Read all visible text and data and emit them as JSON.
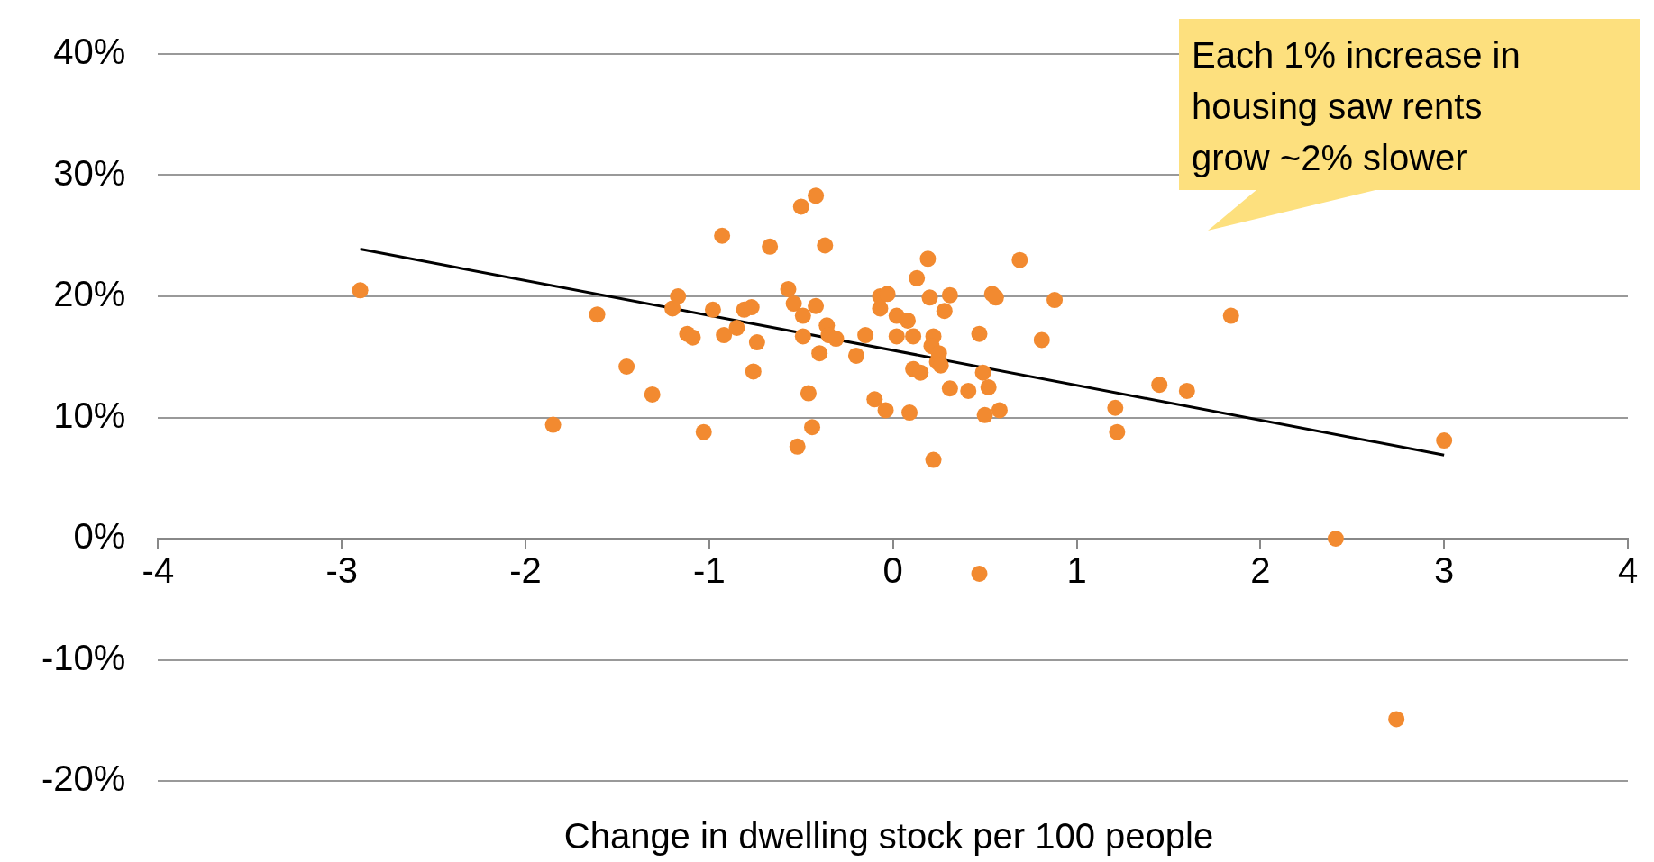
{
  "chart_data": {
    "type": "scatter",
    "xlabel": "Change in dwelling stock per 100 people",
    "xlim": [
      -4,
      4
    ],
    "xticks": [
      -4,
      -3,
      -2,
      -1,
      0,
      1,
      2,
      3,
      4
    ],
    "ylim": [
      -20,
      40
    ],
    "yticks": [
      {
        "value": -20,
        "label": "-20%"
      },
      {
        "value": -10,
        "label": "-10%"
      },
      {
        "value": 0,
        "label": "0%"
      },
      {
        "value": 10,
        "label": "10%"
      },
      {
        "value": 20,
        "label": "20%"
      },
      {
        "value": 30,
        "label": "30%"
      },
      {
        "value": 40,
        "label": "40%"
      }
    ],
    "grid": "y",
    "legend": false,
    "marker": "circle",
    "annotations": [
      "Each 1% increase in housing saw rents grow ~2% slower"
    ],
    "series": [
      {
        "color": "#f28a30",
        "x": [
          -2.9,
          -1.85,
          -1.61,
          -1.45,
          -1.31,
          -1.2,
          -1.17,
          -1.12,
          -1.09,
          -1.03,
          -0.98,
          -0.93,
          -0.92,
          -0.85,
          -0.81,
          -0.77,
          -0.76,
          -0.74,
          -0.67,
          -0.57,
          -0.54,
          -0.52,
          -0.5,
          -0.49,
          -0.49,
          -0.46,
          -0.44,
          -0.42,
          -0.42,
          -0.4,
          -0.37,
          -0.36,
          -0.35,
          -0.31,
          -0.2,
          -0.15,
          -0.1,
          -0.07,
          -0.07,
          -0.04,
          -0.03,
          0.02,
          0.02,
          0.08,
          0.09,
          0.11,
          0.11,
          0.13,
          0.15,
          0.19,
          0.2,
          0.22,
          0.21,
          0.22,
          0.24,
          0.25,
          0.26,
          0.28,
          0.31,
          0.31,
          0.41,
          0.47,
          0.47,
          0.49,
          0.5,
          0.52,
          0.54,
          0.56,
          0.58,
          0.69,
          0.81,
          0.88,
          1.21,
          1.22,
          1.45,
          1.6,
          1.84,
          2.41,
          2.74,
          3.0
        ],
        "values": [
          20.5,
          9.4,
          18.5,
          14.2,
          11.9,
          19.0,
          20.0,
          16.9,
          16.6,
          8.8,
          18.9,
          25.0,
          16.8,
          17.4,
          18.9,
          19.1,
          13.8,
          16.2,
          24.1,
          20.6,
          19.4,
          7.6,
          27.4,
          18.4,
          16.7,
          12.0,
          9.2,
          19.2,
          28.3,
          15.3,
          24.2,
          17.6,
          16.8,
          16.5,
          15.1,
          16.8,
          11.5,
          20.0,
          19.0,
          10.6,
          20.2,
          16.7,
          18.4,
          18.0,
          10.4,
          16.7,
          14.0,
          21.5,
          13.7,
          23.1,
          19.9,
          16.7,
          15.9,
          6.5,
          14.6,
          15.3,
          14.3,
          18.8,
          20.1,
          12.4,
          12.2,
          16.9,
          -2.9,
          13.7,
          10.2,
          12.5,
          20.2,
          19.9,
          10.6,
          23.0,
          16.4,
          19.7,
          10.8,
          8.8,
          12.7,
          12.2,
          18.4,
          0,
          -14.9,
          8.1
        ]
      },
      {
        "type": "line",
        "color": "#000000",
        "x": [
          -2.9,
          3.0
        ],
        "values": [
          23.9,
          6.9
        ],
        "marker": "none"
      }
    ]
  }
}
